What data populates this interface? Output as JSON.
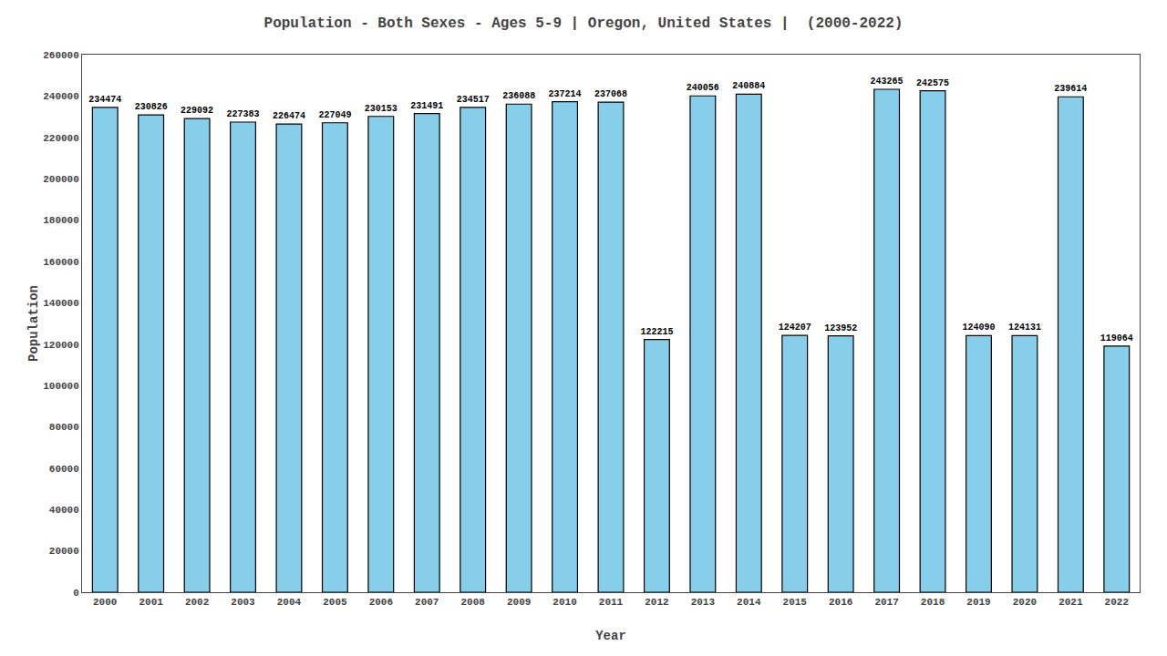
{
  "chart_data": {
    "type": "bar",
    "title": "Population - Both Sexes - Ages 5-9 | Oregon, United States |  (2000-2022)",
    "x_label": "Year",
    "y_label": "Population",
    "categories": [
      "2000",
      "2001",
      "2002",
      "2003",
      "2004",
      "2005",
      "2006",
      "2007",
      "2008",
      "2009",
      "2010",
      "2011",
      "2012",
      "2013",
      "2014",
      "2015",
      "2016",
      "2017",
      "2018",
      "2019",
      "2020",
      "2021",
      "2022"
    ],
    "values": [
      234474,
      230826,
      229092,
      227383,
      226474,
      227049,
      230153,
      231491,
      234517,
      236088,
      237214,
      237068,
      122215,
      240056,
      240884,
      124207,
      123952,
      243265,
      242575,
      124090,
      124131,
      239614,
      119064
    ],
    "color": "#87CEEB",
    "ylim": [
      0,
      260000
    ],
    "yticks": [
      0,
      20000,
      40000,
      60000,
      80000,
      100000,
      120000,
      140000,
      160000,
      180000,
      200000,
      220000,
      240000,
      260000
    ],
    "grid": false,
    "data_labels": true
  }
}
